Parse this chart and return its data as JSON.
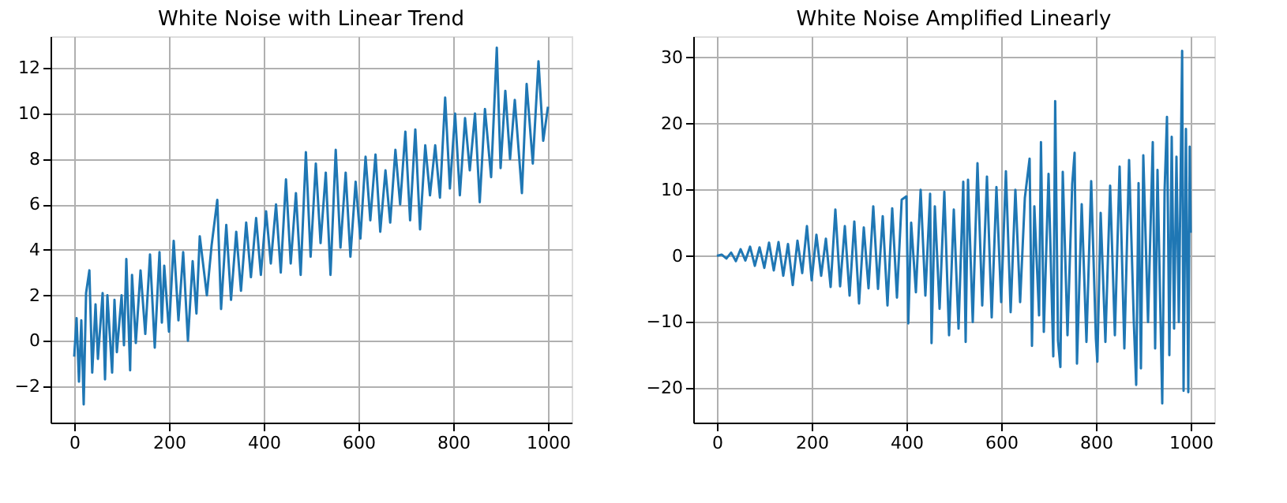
{
  "chart_data": [
    {
      "type": "line",
      "title": "White Noise with Linear Trend",
      "color": "#1f77b4",
      "grid": true,
      "x": [
        0,
        5,
        10,
        15,
        20,
        25,
        32,
        38,
        45,
        50,
        60,
        65,
        70,
        80,
        85,
        90,
        100,
        105,
        110,
        118,
        122,
        130,
        140,
        150,
        160,
        170,
        180,
        185,
        190,
        200,
        210,
        220,
        230,
        240,
        250,
        258,
        265,
        280,
        290,
        302,
        310,
        321,
        331,
        342,
        352,
        363,
        373,
        384,
        394,
        405,
        415,
        426,
        436,
        447,
        457,
        468,
        478,
        489,
        499,
        510,
        520,
        531,
        541,
        552,
        562,
        573,
        583,
        594,
        604,
        615,
        625,
        636,
        646,
        657,
        667,
        678,
        688,
        699,
        709,
        720,
        730,
        741,
        751,
        762,
        772,
        783,
        793,
        804,
        814,
        825,
        835,
        846,
        856,
        867,
        880,
        892,
        900,
        910,
        920,
        930,
        945,
        955,
        968,
        980,
        990,
        1000
      ],
      "values": [
        -0.7,
        1.0,
        -1.8,
        0.9,
        -2.8,
        2.1,
        3.1,
        -1.4,
        1.6,
        -0.8,
        2.1,
        -1.7,
        2.0,
        -1.4,
        1.8,
        -0.5,
        2.0,
        -0.2,
        3.6,
        -1.3,
        2.9,
        -0.1,
        3.1,
        0.3,
        3.8,
        -0.3,
        3.9,
        0.8,
        3.3,
        0.4,
        4.4,
        0.9,
        3.9,
        0.0,
        3.5,
        1.2,
        4.6,
        2.0,
        4.2,
        6.2,
        1.4,
        5.1,
        1.8,
        4.8,
        2.2,
        5.2,
        2.8,
        5.4,
        2.9,
        5.7,
        3.4,
        6.0,
        3.0,
        7.1,
        3.4,
        6.5,
        2.9,
        8.3,
        3.7,
        7.8,
        4.3,
        7.4,
        2.9,
        8.4,
        4.1,
        7.4,
        3.7,
        7.0,
        4.5,
        8.1,
        5.3,
        8.2,
        4.8,
        7.5,
        5.2,
        8.4,
        6.0,
        9.2,
        5.3,
        9.3,
        4.9,
        8.6,
        6.4,
        8.6,
        6.3,
        10.7,
        6.7,
        10.0,
        6.4,
        9.8,
        7.5,
        10.0,
        6.1,
        10.2,
        7.2,
        12.9,
        7.6,
        11.0,
        8.0,
        10.6,
        6.5,
        11.3,
        7.8,
        12.3,
        8.8,
        10.3
      ],
      "xlim": [
        -50,
        1050
      ],
      "ylim": [
        -3.6,
        13.4
      ],
      "xticks": [
        0,
        200,
        400,
        600,
        800,
        1000
      ],
      "yticks": [
        {
          "value": -2,
          "label": "−2"
        },
        0,
        2,
        4,
        6,
        8,
        10,
        12
      ]
    },
    {
      "type": "line",
      "title": "White Noise Amplified Linearly",
      "color": "#1f77b4",
      "grid": true,
      "x": [
        0,
        10,
        20,
        30,
        40,
        50,
        60,
        70,
        80,
        90,
        100,
        110,
        120,
        130,
        140,
        150,
        160,
        170,
        180,
        190,
        200,
        210,
        220,
        230,
        240,
        250,
        260,
        270,
        280,
        290,
        300,
        310,
        320,
        330,
        340,
        350,
        360,
        370,
        380,
        390,
        400,
        404,
        410,
        420,
        430,
        440,
        450,
        453,
        460,
        470,
        480,
        490,
        500,
        510,
        520,
        525,
        530,
        540,
        550,
        560,
        570,
        580,
        590,
        600,
        610,
        620,
        630,
        640,
        650,
        660,
        665,
        670,
        680,
        684,
        690,
        700,
        710,
        714,
        720,
        725,
        730,
        740,
        750,
        755,
        760,
        770,
        780,
        790,
        800,
        803,
        810,
        820,
        830,
        840,
        850,
        860,
        870,
        880,
        885,
        890,
        895,
        900,
        910,
        920,
        925,
        930,
        940,
        945,
        950,
        955,
        960,
        965,
        970,
        975,
        982,
        985,
        990,
        995,
        998,
        1000
      ],
      "values": [
        0,
        0.2,
        -0.4,
        0.5,
        -0.8,
        1.0,
        -0.7,
        1.4,
        -1.5,
        1.3,
        -1.8,
        2.0,
        -2.2,
        2.1,
        -3.0,
        1.8,
        -4.4,
        2.3,
        -2.6,
        4.5,
        -3.7,
        3.2,
        -3.0,
        2.6,
        -4.7,
        7.0,
        -4.6,
        4.5,
        -6.0,
        5.2,
        -7.2,
        4.3,
        -4.9,
        7.5,
        -5.0,
        6.0,
        -7.5,
        7.2,
        -6.3,
        8.5,
        9.0,
        -10.2,
        5.0,
        -5.5,
        10.0,
        -6.0,
        9.4,
        -13.2,
        7.5,
        -8.0,
        9.7,
        -12.0,
        7.0,
        -11.0,
        11.2,
        -13.0,
        11.5,
        -10.0,
        14.0,
        -7.5,
        12.0,
        -9.3,
        10.4,
        -7.0,
        12.8,
        -8.5,
        10.0,
        -7.0,
        8.8,
        14.7,
        -13.6,
        7.5,
        -9.0,
        17.2,
        -11.5,
        12.4,
        -15.2,
        23.4,
        -12.8,
        -16.8,
        12.7,
        -12.0,
        10.9,
        15.6,
        -16.3,
        7.8,
        -13.0,
        11.3,
        -12.6,
        -16.0,
        6.5,
        -13.0,
        10.6,
        -12.0,
        13.5,
        -14.0,
        14.5,
        -10.0,
        -19.5,
        11.0,
        -17.0,
        15.2,
        -10.0,
        17.2,
        -14.0,
        13.0,
        -22.3,
        10.0,
        21.0,
        -15.0,
        18.0,
        -11.0,
        15.0,
        -10.0,
        31.0,
        -20.4,
        19.2,
        -20.6,
        16.5,
        3.5
      ],
      "xlim": [
        -50,
        1050
      ],
      "ylim": [
        -25.2,
        33.2
      ],
      "xticks": [
        0,
        200,
        400,
        600,
        800,
        1000
      ],
      "yticks": [
        {
          "value": -20,
          "label": "−20"
        },
        {
          "value": -10,
          "label": "−10"
        },
        0,
        10,
        20,
        30
      ]
    }
  ]
}
